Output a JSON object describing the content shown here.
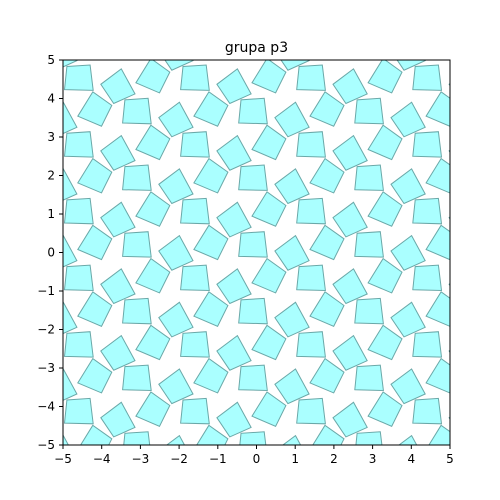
{
  "chart_data": {
    "type": "scatter",
    "title": "grupa p3",
    "xlabel": "",
    "ylabel": "",
    "xlim": [
      -5,
      5
    ],
    "ylim": [
      -5,
      5
    ],
    "xticks": [
      "−5",
      "−4",
      "−3",
      "−2",
      "−1",
      "0",
      "1",
      "2",
      "3",
      "4",
      "5"
    ],
    "yticks": [
      "−5",
      "−4",
      "−3",
      "−2",
      "−1",
      "0",
      "1",
      "2",
      "3",
      "4",
      "5"
    ],
    "grid": false,
    "tile_fill": "#aaffff",
    "tile_stroke": "#6aa8a8",
    "lattice": {
      "a": [
        1.5,
        0.866
      ],
      "b": [
        0,
        1.732
      ],
      "offsets": [
        [
          -0.1,
          0.2
        ],
        [
          0.92,
          -0.05
        ],
        [
          0.35,
          -0.62
        ]
      ],
      "rotation_deg": [
        0,
        120,
        240
      ],
      "base_tile": [
        [
          -0.36,
          -0.3
        ],
        [
          0.38,
          -0.32
        ],
        [
          0.3,
          0.34
        ],
        [
          -0.3,
          0.3
        ]
      ]
    },
    "tile_centers": [
      [
        -4.83,
        4.78
      ],
      [
        -3.94,
        4.58
      ],
      [
        -3.1,
        4.69
      ],
      [
        -2.05,
        4.7
      ],
      [
        -1.0,
        4.6
      ],
      [
        0.06,
        4.66
      ],
      [
        1.1,
        4.62
      ],
      [
        2.04,
        4.58
      ],
      [
        2.95,
        4.66
      ],
      [
        3.98,
        4.7
      ],
      [
        4.86,
        4.53
      ]
    ]
  }
}
